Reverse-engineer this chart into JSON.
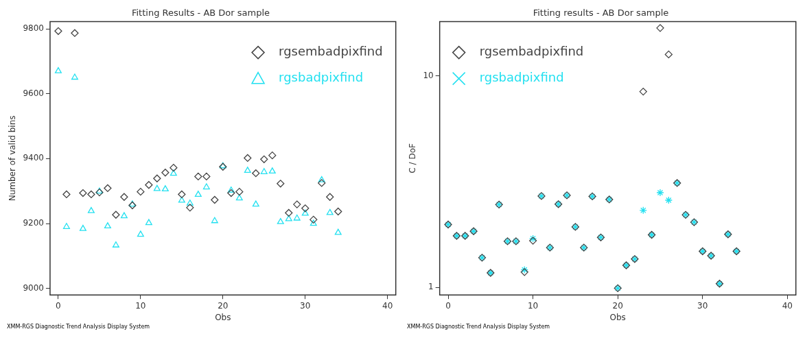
{
  "chart_data": [
    {
      "type": "scatter",
      "title": "Fitting Results - AB Dor sample",
      "xlabel": "Obs",
      "ylabel": "Number of valid bins",
      "x": [
        0,
        1,
        2,
        3,
        4,
        5,
        6,
        7,
        8,
        9,
        10,
        11,
        12,
        13,
        14,
        15,
        16,
        17,
        18,
        19,
        20,
        21,
        22,
        23,
        24,
        25,
        26,
        27,
        28,
        29,
        30,
        31,
        32,
        33,
        34
      ],
      "xlim": [
        -1,
        41
      ],
      "xticks": [
        0,
        10,
        20,
        30,
        40
      ],
      "ylim": [
        8980,
        9822
      ],
      "yticks": [
        9000,
        9200,
        9400,
        9600,
        9800
      ],
      "legend": "top right",
      "annotations": [
        "XMM-RGS Diagnostic Trend Analysis Display System"
      ],
      "series": [
        {
          "name": "rgsembadpixfind",
          "color": "#444444",
          "marker": "diamond",
          "values": [
            9793,
            9290,
            9787,
            9294,
            9290,
            9296,
            9309,
            9227,
            9282,
            9256,
            9298,
            9319,
            9339,
            9357,
            9372,
            9290,
            9249,
            9345,
            9345,
            9273,
            9375,
            9294,
            9298,
            9402,
            9355,
            9398,
            9410,
            9323,
            9233,
            9259,
            9247,
            9212,
            9325,
            9282,
            9237
          ]
        },
        {
          "name": "rgsbadpixfind",
          "color": "#22e0f0",
          "marker": "triangle",
          "values": [
            9670,
            9190,
            9650,
            9184,
            9239,
            9299,
            9192,
            9133,
            9223,
            9259,
            9166,
            9202,
            9307,
            9306,
            9354,
            9271,
            9262,
            9289,
            9312,
            9208,
            9377,
            9302,
            9278,
            9363,
            9259,
            9359,
            9361,
            9205,
            9214,
            9216,
            9231,
            9200,
            9334,
            9233,
            9172
          ]
        }
      ]
    },
    {
      "type": "scatter",
      "title": "Fitting results - AB Dor sample",
      "xlabel": "Obs",
      "ylabel": "C / DoF",
      "log": "y",
      "x": [
        0,
        1,
        2,
        3,
        4,
        5,
        6,
        7,
        8,
        9,
        10,
        11,
        12,
        13,
        14,
        15,
        16,
        17,
        18,
        19,
        20,
        21,
        22,
        23,
        24,
        25,
        26,
        27,
        28,
        29,
        30,
        31,
        32,
        33,
        34
      ],
      "xlim": [
        -1,
        41
      ],
      "xticks": [
        0,
        10,
        20,
        30,
        40
      ],
      "ylim": [
        0.92,
        18
      ],
      "yticks": [
        1,
        10
      ],
      "legend": "top left",
      "annotations": [
        "XMM-RGS Diagnostic Trend Analysis Display System"
      ],
      "series": [
        {
          "name": "rgsembadpixfind",
          "color": "#444444",
          "marker": "diamond",
          "values": [
            1.98,
            1.75,
            1.75,
            1.84,
            1.38,
            1.17,
            2.46,
            1.65,
            1.65,
            1.18,
            1.66,
            2.7,
            1.54,
            2.47,
            2.72,
            1.93,
            1.54,
            2.69,
            1.72,
            2.6,
            0.99,
            1.27,
            1.36,
            8.41,
            1.77,
            16.8,
            12.6,
            3.11,
            2.2,
            2.03,
            1.48,
            1.41,
            1.04,
            1.78,
            1.48
          ]
        },
        {
          "name": "rgsbadpixfind",
          "color": "#22e0f0",
          "marker": "cross",
          "values": [
            1.98,
            1.75,
            1.75,
            1.84,
            1.38,
            1.17,
            2.46,
            1.65,
            1.65,
            1.21,
            1.7,
            2.7,
            1.54,
            2.47,
            2.72,
            1.93,
            1.54,
            2.69,
            1.72,
            2.6,
            0.99,
            1.27,
            1.36,
            2.31,
            1.77,
            2.8,
            2.58,
            3.11,
            2.2,
            2.03,
            1.48,
            1.41,
            1.04,
            1.78,
            1.48
          ]
        }
      ]
    }
  ]
}
